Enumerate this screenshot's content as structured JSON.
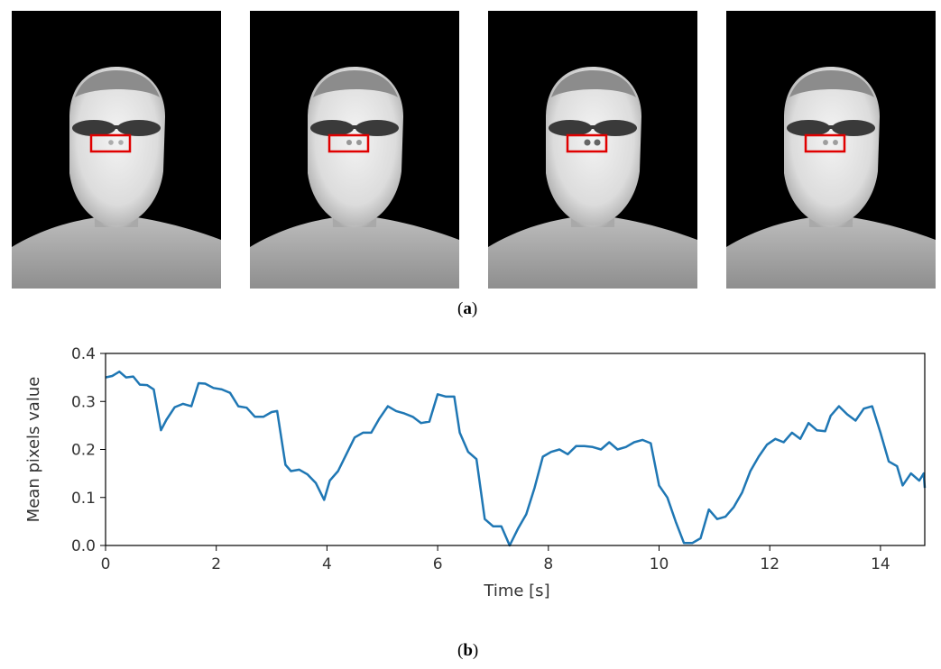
{
  "panel_a_label": {
    "open": "(",
    "letter": "a",
    "close": ")"
  },
  "panel_b_label": {
    "open": "(",
    "letter": "b",
    "close": ")"
  },
  "thermal_frames": [
    {
      "name": "thermal-frame-1",
      "nostril_intensity": 0.2
    },
    {
      "name": "thermal-frame-2",
      "nostril_intensity": 0.35
    },
    {
      "name": "thermal-frame-3",
      "nostril_intensity": 0.7
    },
    {
      "name": "thermal-frame-4",
      "nostril_intensity": 0.3
    }
  ],
  "colors": {
    "line": "#1f77b4",
    "roi_box": "#e00000",
    "background": "#000000"
  },
  "chart_data": {
    "type": "line",
    "xlabel": "Time [s]",
    "ylabel": "Mean pixels value",
    "xlim": [
      0,
      14.8
    ],
    "ylim": [
      0,
      0.4
    ],
    "xticks": [
      0,
      2,
      4,
      6,
      8,
      10,
      12,
      14
    ],
    "yticks": [
      0.0,
      0.1,
      0.2,
      0.3,
      0.4
    ],
    "xtick_labels": [
      "0",
      "2",
      "4",
      "6",
      "8",
      "10",
      "12",
      "14"
    ],
    "ytick_labels": [
      "0.0",
      "0.1",
      "0.2",
      "0.3",
      "0.4"
    ],
    "grid": false,
    "series": [
      {
        "x": [
          0,
          0.12,
          0.25,
          0.37,
          0.5,
          0.62,
          0.75,
          0.87,
          1.0,
          1.1,
          1.25,
          1.4,
          1.55,
          1.68,
          1.8,
          1.95,
          2.1,
          2.25,
          2.4,
          2.55,
          2.7,
          2.85,
          3.0,
          3.1,
          3.25,
          3.35,
          3.5,
          3.65,
          3.8,
          3.95,
          4.05,
          4.2,
          4.35,
          4.5,
          4.65,
          4.8,
          4.95,
          5.1,
          5.25,
          5.4,
          5.55,
          5.7,
          5.85,
          6.0,
          6.15,
          6.3,
          6.4,
          6.55,
          6.7,
          6.85,
          7.0,
          7.15,
          7.3,
          7.45,
          7.6,
          7.75,
          7.9,
          8.05,
          8.2,
          8.35,
          8.5,
          8.65,
          8.8,
          8.95,
          9.1,
          9.25,
          9.4,
          9.55,
          9.7,
          9.85,
          10.0,
          10.15,
          10.3,
          10.45,
          10.6,
          10.75,
          10.9,
          11.05,
          11.2,
          11.35,
          11.5,
          11.65,
          11.8,
          11.95,
          12.1,
          12.25,
          12.4,
          12.55,
          12.7,
          12.85,
          13.0,
          13.1,
          13.25,
          13.4,
          13.55,
          13.7,
          13.85,
          14.0,
          14.15,
          14.3,
          14.4,
          14.55,
          14.7,
          14.78,
          14.8
        ],
        "y": [
          0.35,
          0.353,
          0.362,
          0.35,
          0.352,
          0.335,
          0.334,
          0.325,
          0.24,
          0.262,
          0.288,
          0.295,
          0.29,
          0.338,
          0.337,
          0.328,
          0.325,
          0.318,
          0.29,
          0.287,
          0.268,
          0.268,
          0.278,
          0.28,
          0.168,
          0.155,
          0.158,
          0.148,
          0.13,
          0.095,
          0.135,
          0.155,
          0.19,
          0.225,
          0.235,
          0.235,
          0.265,
          0.29,
          0.28,
          0.275,
          0.268,
          0.255,
          0.258,
          0.315,
          0.31,
          0.31,
          0.235,
          0.195,
          0.18,
          0.055,
          0.04,
          0.04,
          0.0,
          0.035,
          0.065,
          0.12,
          0.185,
          0.195,
          0.2,
          0.19,
          0.207,
          0.207,
          0.205,
          0.2,
          0.215,
          0.2,
          0.205,
          0.215,
          0.22,
          0.213,
          0.125,
          0.1,
          0.05,
          0.005,
          0.005,
          0.015,
          0.075,
          0.055,
          0.06,
          0.08,
          0.11,
          0.155,
          0.185,
          0.21,
          0.222,
          0.215,
          0.235,
          0.222,
          0.255,
          0.24,
          0.238,
          0.27,
          0.29,
          0.273,
          0.26,
          0.285,
          0.29,
          0.235,
          0.175,
          0.165,
          0.125,
          0.15,
          0.135,
          0.15,
          0.12
        ]
      }
    ]
  }
}
